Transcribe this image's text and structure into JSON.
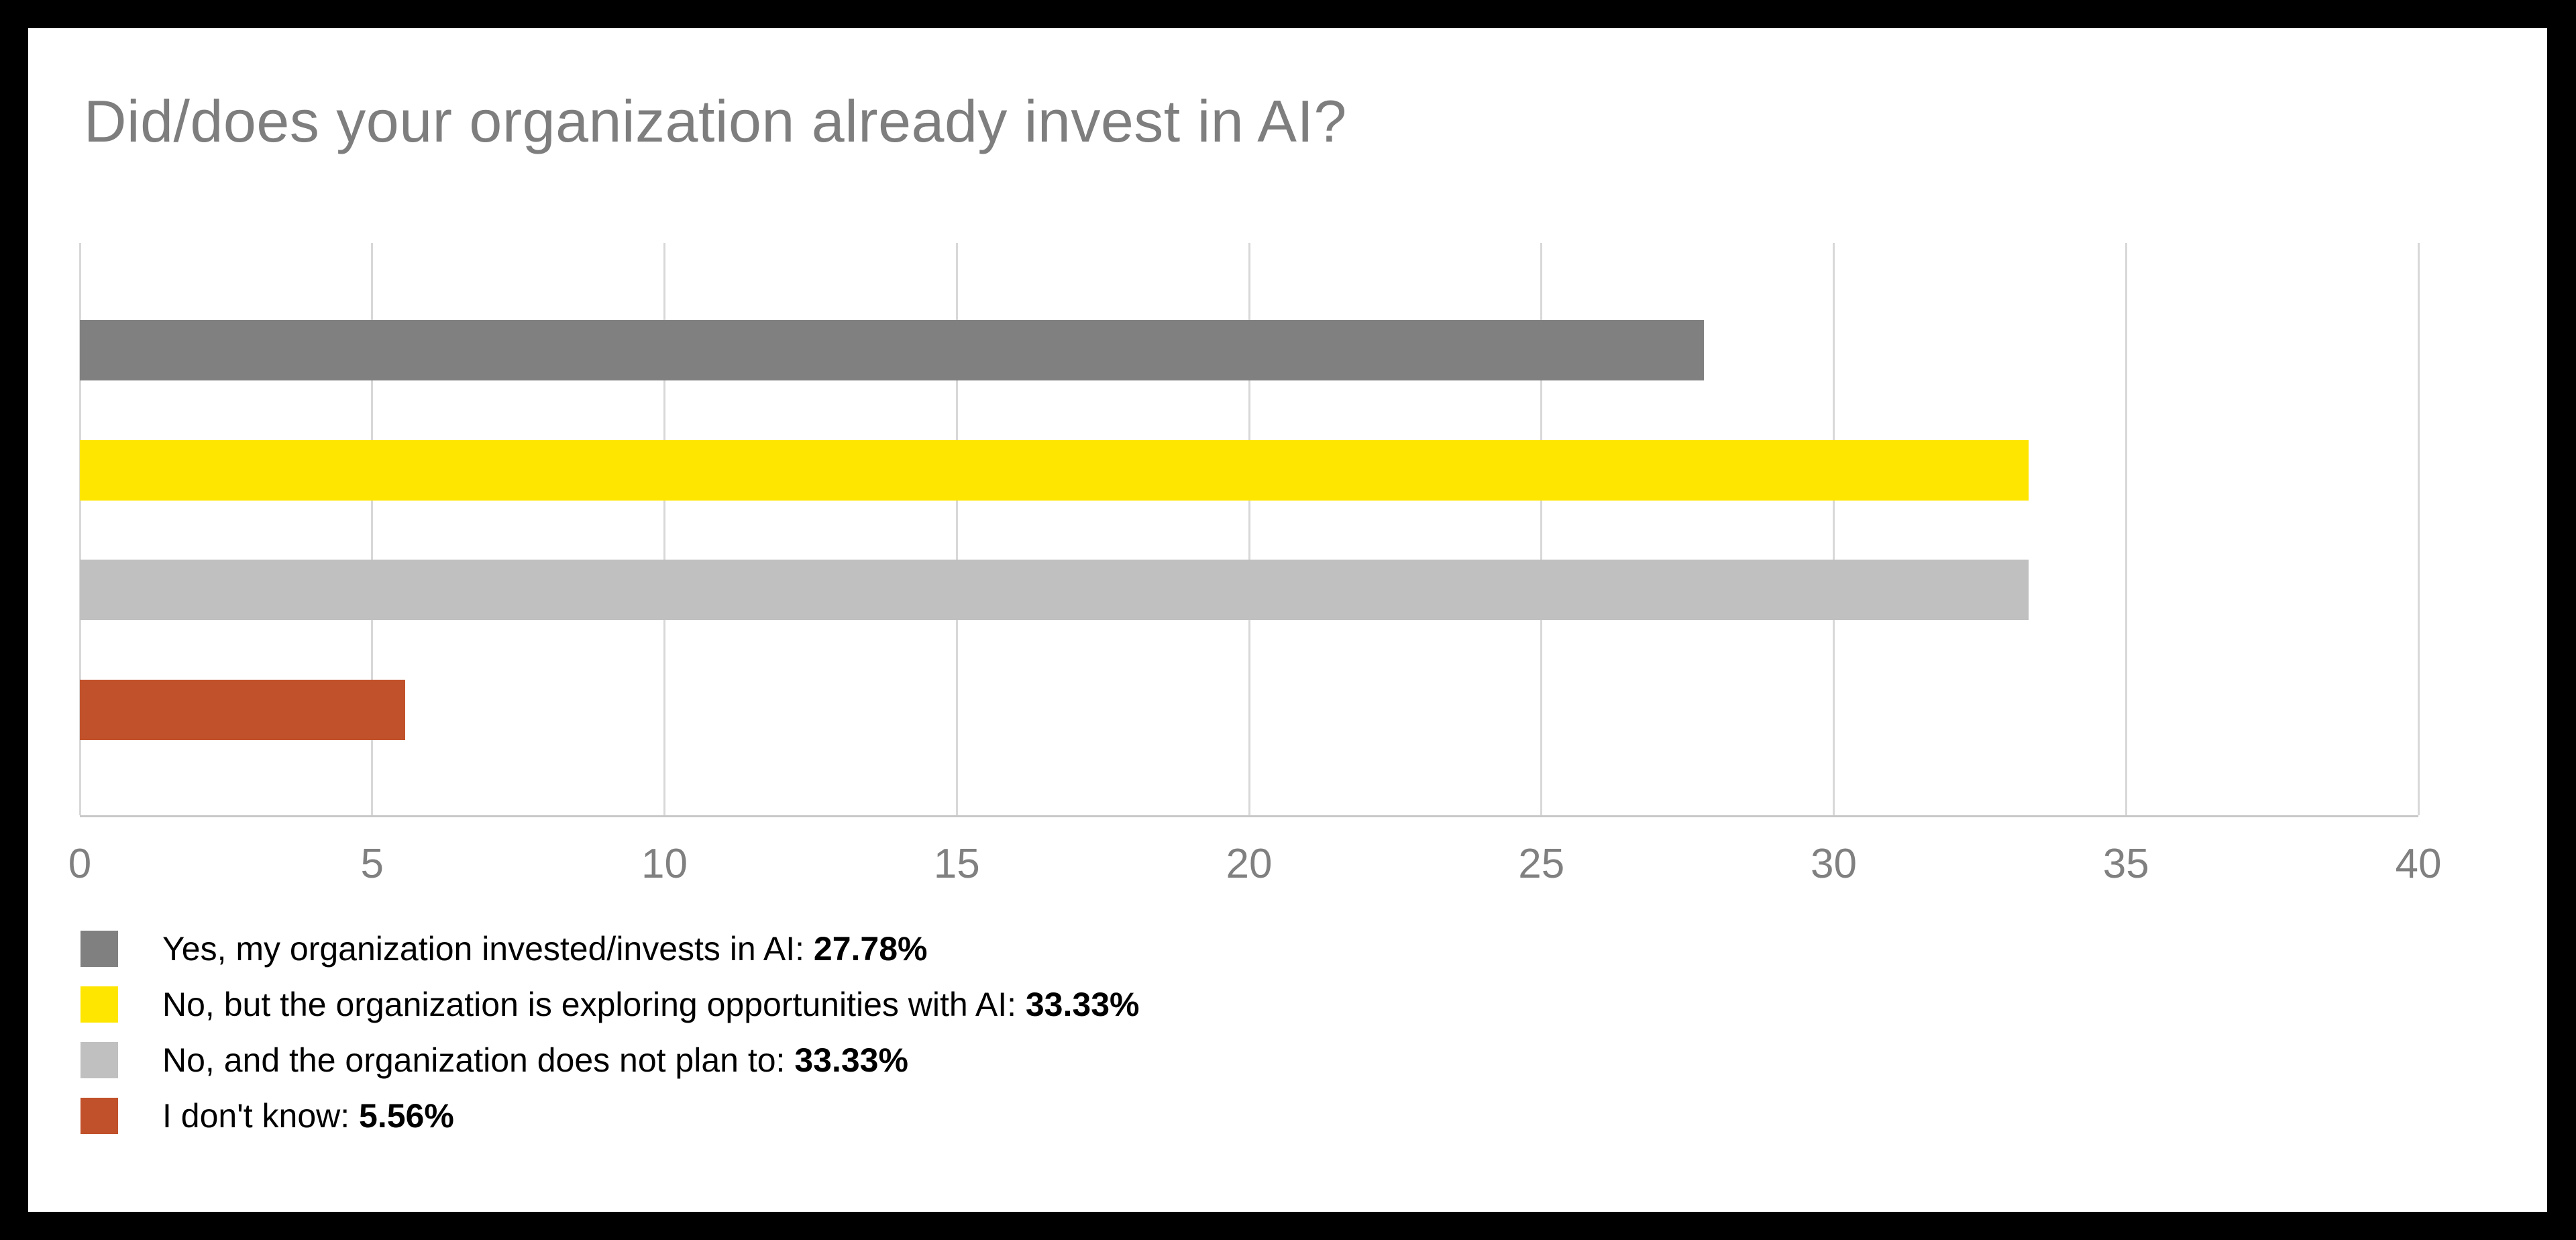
{
  "title": "Did/does your organization already invest in AI?",
  "chart_data": {
    "type": "bar",
    "orientation": "horizontal",
    "title": "Did/does your organization already invest in AI?",
    "categories": [
      "Yes, my organization invested/invests in AI",
      "No, but the organization is exploring opportunities with AI",
      "No, and the organization does not plan to",
      "I don't know"
    ],
    "values": [
      27.78,
      33.33,
      33.33,
      5.56
    ],
    "value_labels": [
      "27.78%",
      "33.33%",
      "33.33%",
      "5.56%"
    ],
    "bar_colors": [
      "#808080",
      "#FFE600",
      "#C0C0C0",
      "#C1512A"
    ],
    "xlim": [
      0,
      40
    ],
    "x_ticks": [
      0,
      5,
      10,
      15,
      20,
      25,
      30,
      35,
      40
    ],
    "grid": "vertical",
    "xlabel": "",
    "ylabel": "",
    "legend_position": "bottom-left"
  },
  "legend": {
    "separator": ": ",
    "items": [
      {
        "label": "Yes, my organization invested/invests in AI",
        "value_label": "27.78%",
        "color": "#808080"
      },
      {
        "label": "No, but the organization is exploring opportunities with AI",
        "value_label": "33.33%",
        "color": "#FFE600"
      },
      {
        "label": "No, and the organization does not plan to",
        "value_label": "33.33%",
        "color": "#C0C0C0"
      },
      {
        "label": "I don't know",
        "value_label": "5.56%",
        "color": "#C1512A"
      }
    ]
  },
  "colors": {
    "background": "#000000",
    "panel": "#FFFFFF",
    "title_text": "#7E7E7E",
    "tick_text": "#808080",
    "gridline": "#D8D8D8",
    "axis_line": "#C8C8C8",
    "legend_text": "#000000"
  }
}
